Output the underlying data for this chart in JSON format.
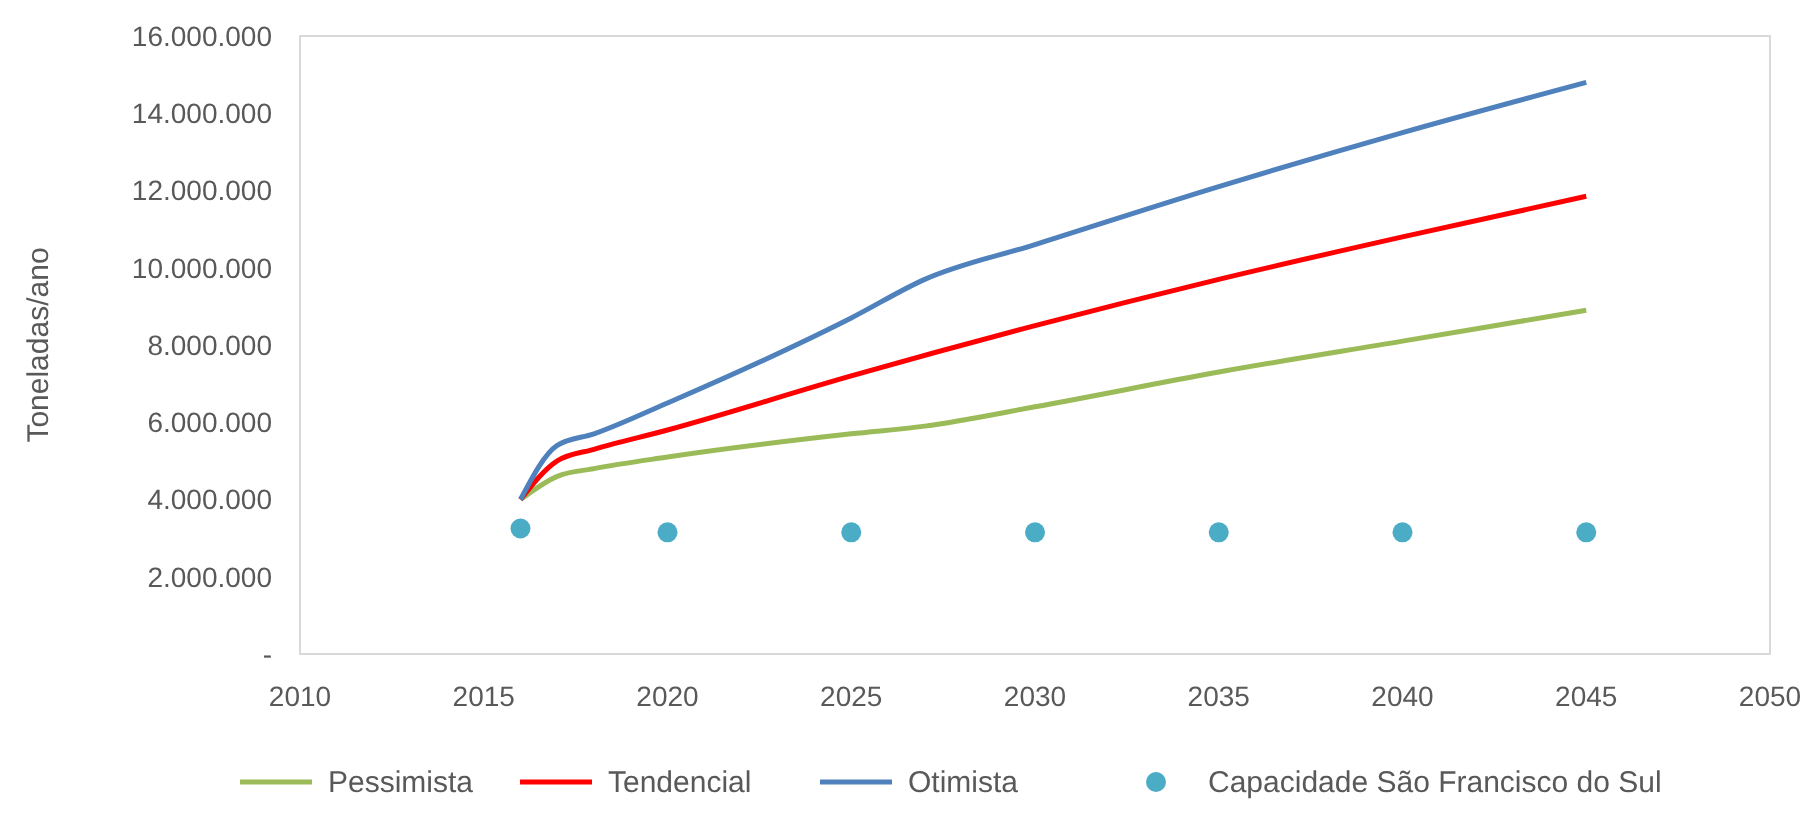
{
  "chart_data": {
    "type": "line",
    "ylabel": "Toneladas/ano",
    "xlim": [
      2010,
      2050
    ],
    "xticks": [
      2010,
      2015,
      2020,
      2025,
      2030,
      2035,
      2040,
      2045,
      2050
    ],
    "ylim": [
      0,
      16000000
    ],
    "yticks": [
      {
        "value": 0,
        "label": "-"
      },
      {
        "value": 2000000,
        "label": "2.000.000"
      },
      {
        "value": 4000000,
        "label": "4.000.000"
      },
      {
        "value": 6000000,
        "label": "6.000.000"
      },
      {
        "value": 8000000,
        "label": "8.000.000"
      },
      {
        "value": 10000000,
        "label": "10.000.000"
      },
      {
        "value": 12000000,
        "label": "12.000.000"
      },
      {
        "value": 14000000,
        "label": "14.000.000"
      },
      {
        "value": 16000000,
        "label": "16.000.000"
      }
    ],
    "grid": false,
    "legend": "bottom",
    "series": [
      {
        "name": "Pessimista",
        "color": "#9bbb59",
        "x": [
          2016,
          2017,
          2018,
          2020,
          2025,
          2027,
          2030,
          2035,
          2040,
          2045
        ],
        "values": [
          4000000,
          4600000,
          4800000,
          5100000,
          5700000,
          5900000,
          6400000,
          7300000,
          8100000,
          8900000
        ]
      },
      {
        "name": "Tendencial",
        "color": "#ff0000",
        "x": [
          2016,
          2017,
          2018,
          2020,
          2025,
          2030,
          2035,
          2040,
          2045
        ],
        "values": [
          4000000,
          5000000,
          5300000,
          5800000,
          7200000,
          8500000,
          9700000,
          10800000,
          11850000
        ]
      },
      {
        "name": "Otimista",
        "color": "#4f81bd",
        "x": [
          2016,
          2017,
          2018,
          2020,
          2025,
          2027,
          2030,
          2035,
          2040,
          2045
        ],
        "values": [
          4000000,
          5400000,
          5700000,
          6500000,
          8700000,
          9700000,
          10600000,
          12100000,
          13500000,
          14800000
        ]
      },
      {
        "name": "Capacidade São Francisco do Sul",
        "type": "scatter",
        "marker": "circle",
        "color": "#4bacc6",
        "x": [
          2016,
          2020,
          2025,
          2030,
          2035,
          2040,
          2045
        ],
        "values": [
          3250000,
          3150000,
          3150000,
          3150000,
          3150000,
          3150000,
          3150000
        ]
      }
    ]
  }
}
